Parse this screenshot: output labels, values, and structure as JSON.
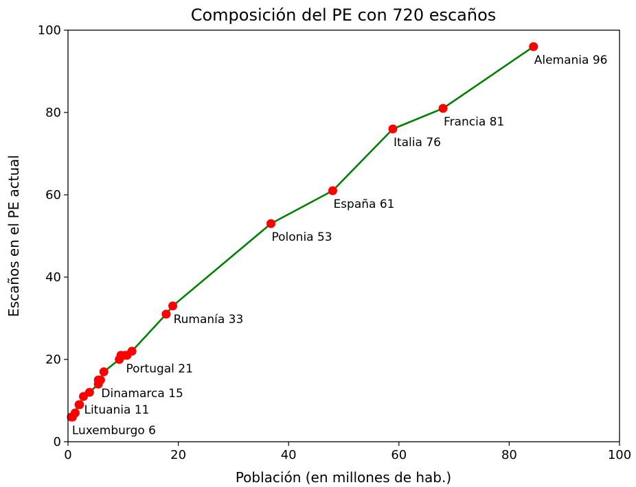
{
  "chart_data": {
    "type": "line",
    "title": "Composición del PE con 720 escaños",
    "xlabel": "Población (en millones de hab.)",
    "ylabel": "Escaños en el PE actual",
    "xlim": [
      0,
      100
    ],
    "ylim": [
      0,
      100
    ],
    "xticks": [
      0,
      20,
      40,
      60,
      80,
      100
    ],
    "yticks": [
      0,
      20,
      40,
      60,
      80,
      100
    ],
    "line_color": "#008000",
    "marker_color": "#ff0000",
    "grid": false,
    "legend": "none",
    "points": [
      {
        "x": 0.6,
        "y": 6,
        "label": "Luxemburgo 6"
      },
      {
        "x": 0.8,
        "y": 6,
        "label": ""
      },
      {
        "x": 1.3,
        "y": 7,
        "label": ""
      },
      {
        "x": 2.0,
        "y": 9,
        "label": ""
      },
      {
        "x": 2.1,
        "y": 9,
        "label": ""
      },
      {
        "x": 2.8,
        "y": 11,
        "label": "Lituania 11"
      },
      {
        "x": 3.9,
        "y": 12,
        "label": ""
      },
      {
        "x": 5.5,
        "y": 14,
        "label": ""
      },
      {
        "x": 5.5,
        "y": 15,
        "label": ""
      },
      {
        "x": 5.9,
        "y": 15,
        "label": "Dinamarca 15"
      },
      {
        "x": 6.5,
        "y": 17,
        "label": ""
      },
      {
        "x": 9.3,
        "y": 20,
        "label": ""
      },
      {
        "x": 9.6,
        "y": 21,
        "label": ""
      },
      {
        "x": 10.4,
        "y": 21,
        "label": "Portugal 21"
      },
      {
        "x": 10.7,
        "y": 21,
        "label": ""
      },
      {
        "x": 11.6,
        "y": 22,
        "label": ""
      },
      {
        "x": 17.8,
        "y": 31,
        "label": ""
      },
      {
        "x": 19.0,
        "y": 33,
        "label": "Rumanía 33"
      },
      {
        "x": 36.8,
        "y": 53,
        "label": "Polonia 53"
      },
      {
        "x": 48.0,
        "y": 61,
        "label": "España 61"
      },
      {
        "x": 58.9,
        "y": 76,
        "label": "Italia 76"
      },
      {
        "x": 68.0,
        "y": 81,
        "label": "Francia 81"
      },
      {
        "x": 84.4,
        "y": 96,
        "label": "Alemania 96"
      }
    ]
  }
}
